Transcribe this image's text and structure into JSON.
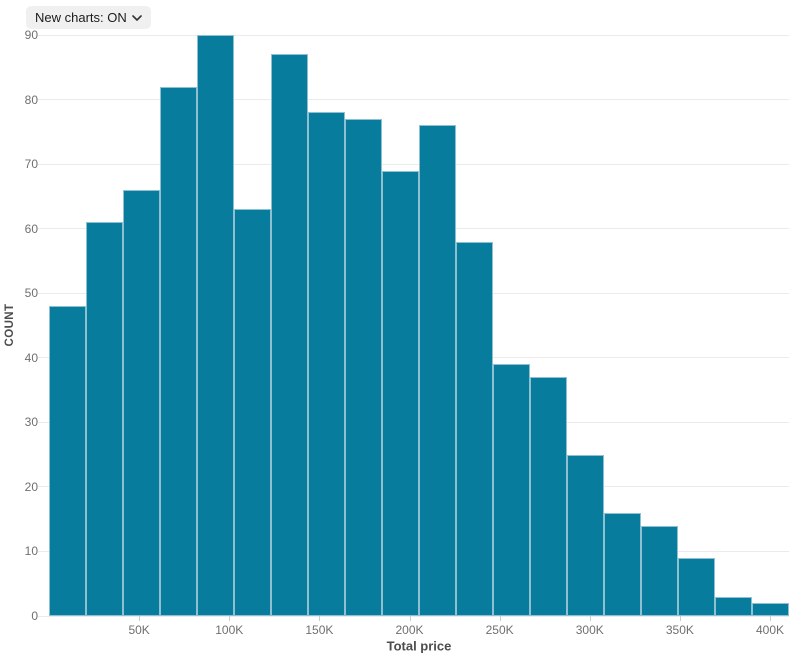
{
  "controls": {
    "new_charts_label": "New charts: ON"
  },
  "chart_data": {
    "type": "bar",
    "subtype": "histogram",
    "title": "",
    "xlabel": "Total price",
    "ylabel": "COUNT",
    "ylim": [
      0,
      90
    ],
    "y_ticks": [
      0,
      10,
      20,
      30,
      40,
      50,
      60,
      70,
      80,
      90
    ],
    "x_ticks": [
      {
        "value_k": 50,
        "label": "50K"
      },
      {
        "value_k": 100,
        "label": "100K"
      },
      {
        "value_k": 150,
        "label": "150K"
      },
      {
        "value_k": 200,
        "label": "200K"
      },
      {
        "value_k": 250,
        "label": "250K"
      },
      {
        "value_k": 300,
        "label": "300K"
      },
      {
        "value_k": 350,
        "label": "350K"
      },
      {
        "value_k": 400,
        "label": "400K"
      }
    ],
    "bin_start_k": 0,
    "bin_width_k": 20,
    "bin_edges_k": [
      0,
      20,
      40,
      60,
      80,
      100,
      120,
      140,
      160,
      180,
      200,
      220,
      240,
      260,
      280,
      300,
      320,
      340,
      360,
      380,
      400
    ],
    "values": [
      48,
      61,
      66,
      82,
      90,
      63,
      87,
      78,
      77,
      69,
      76,
      58,
      39,
      37,
      25,
      16,
      14,
      9,
      3,
      2
    ],
    "grid": "horizontal-only",
    "legend": "none",
    "colors": {
      "bar_fill": "#077C9C",
      "bar_stroke": "#8FC0D2",
      "gridline": "#EBEBEB",
      "tick_text": "#6F6F6F",
      "axis_title_text": "#4D4D4D",
      "dropdown_bg": "#F0F0F0"
    }
  }
}
